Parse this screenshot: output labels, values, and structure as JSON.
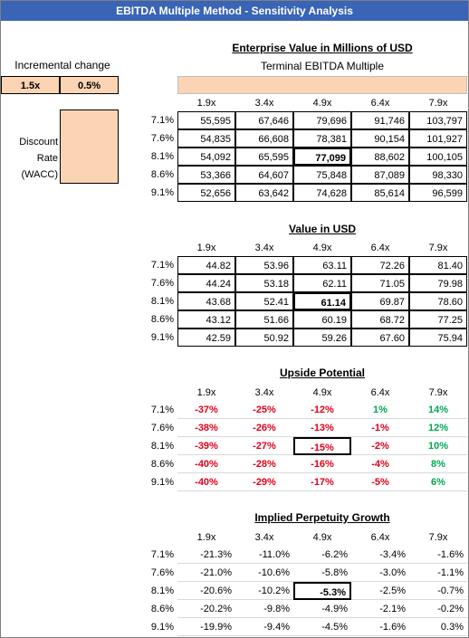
{
  "header": {
    "title": "EBITDA Multiple Method - Sensitivity Analysis"
  },
  "inputs": {
    "label": "Incremental change",
    "values": [
      "1.5x",
      "0.5%"
    ]
  },
  "row_axis": {
    "lines": [
      "Discount",
      "Rate",
      "(WACC)"
    ]
  },
  "sections": [
    {
      "title": "Enterprise Value in Millions of USD",
      "subtitle": "Terminal EBITDA Multiple",
      "columns": [
        "1.9x",
        "3.4x",
        "4.9x",
        "6.4x",
        "7.9x"
      ],
      "rows": [
        {
          "label": "7.1%",
          "cells": [
            "55,595",
            "67,646",
            "79,696",
            "91,746",
            "103,797"
          ]
        },
        {
          "label": "7.6%",
          "cells": [
            "54,835",
            "66,608",
            "78,381",
            "90,154",
            "101,927"
          ]
        },
        {
          "label": "8.1%",
          "cells": [
            "54,092",
            "65,595",
            "77,099",
            "88,602",
            "100,105"
          ]
        },
        {
          "label": "8.6%",
          "cells": [
            "53,366",
            "64,607",
            "75,848",
            "87,089",
            "98,330"
          ]
        },
        {
          "label": "9.1%",
          "cells": [
            "52,656",
            "63,642",
            "74,628",
            "85,614",
            "96,599"
          ]
        }
      ]
    },
    {
      "title": "Value in USD",
      "columns": [
        "1.9x",
        "3.4x",
        "4.9x",
        "6.4x",
        "7.9x"
      ],
      "rows": [
        {
          "label": "7.1%",
          "cells": [
            "44.82",
            "53.96",
            "63.11",
            "72.26",
            "81.40"
          ]
        },
        {
          "label": "7.6%",
          "cells": [
            "44.24",
            "53.18",
            "62.11",
            "71.05",
            "79.98"
          ]
        },
        {
          "label": "8.1%",
          "cells": [
            "43.68",
            "52.41",
            "61.14",
            "69.87",
            "78.60"
          ]
        },
        {
          "label": "8.6%",
          "cells": [
            "43.12",
            "51.66",
            "60.19",
            "68.72",
            "77.25"
          ]
        },
        {
          "label": "9.1%",
          "cells": [
            "42.59",
            "50.92",
            "59.26",
            "67.60",
            "75.94"
          ]
        }
      ]
    },
    {
      "title": "Upside Potential",
      "columns": [
        "1.9x",
        "3.4x",
        "4.9x",
        "6.4x",
        "7.9x"
      ],
      "rows": [
        {
          "label": "7.1%",
          "cells": [
            "-37%",
            "-25%",
            "-12%",
            "1%",
            "14%"
          ]
        },
        {
          "label": "7.6%",
          "cells": [
            "-38%",
            "-26%",
            "-13%",
            "-1%",
            "12%"
          ]
        },
        {
          "label": "8.1%",
          "cells": [
            "-39%",
            "-27%",
            "-15%",
            "-2%",
            "10%"
          ]
        },
        {
          "label": "8.6%",
          "cells": [
            "-40%",
            "-28%",
            "-16%",
            "-4%",
            "8%"
          ]
        },
        {
          "label": "9.1%",
          "cells": [
            "-40%",
            "-29%",
            "-17%",
            "-5%",
            "6%"
          ]
        }
      ]
    },
    {
      "title": "Implied Perpetuity Growth",
      "columns": [
        "1.9x",
        "3.4x",
        "4.9x",
        "6.4x",
        "7.9x"
      ],
      "rows": [
        {
          "label": "7.1%",
          "cells": [
            "-21.3%",
            "-11.0%",
            "-6.2%",
            "-3.4%",
            "-1.6%"
          ]
        },
        {
          "label": "7.6%",
          "cells": [
            "-21.0%",
            "-10.6%",
            "-5.8%",
            "-3.0%",
            "-1.1%"
          ]
        },
        {
          "label": "8.1%",
          "cells": [
            "-20.6%",
            "-10.2%",
            "-5.3%",
            "-2.5%",
            "-0.7%"
          ]
        },
        {
          "label": "8.6%",
          "cells": [
            "-20.2%",
            "-9.8%",
            "-4.9%",
            "-2.1%",
            "-0.2%"
          ]
        },
        {
          "label": "9.1%",
          "cells": [
            "-19.9%",
            "-9.4%",
            "-4.5%",
            "-1.6%",
            "0.3%"
          ]
        }
      ]
    }
  ]
}
